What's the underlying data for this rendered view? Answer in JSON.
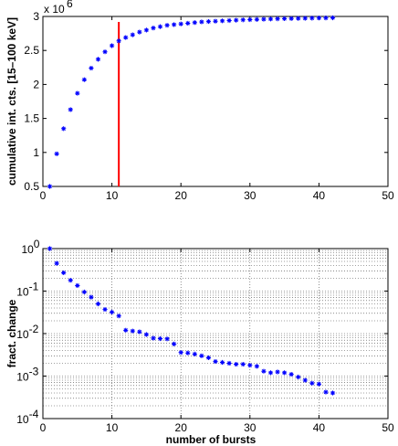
{
  "chart_data": [
    {
      "type": "scatter",
      "title": "",
      "xlabel": "",
      "ylabel": "cumulative int. cts. [15–100 keV]",
      "xlim": [
        0,
        50
      ],
      "ylim": [
        0.5,
        3.0
      ],
      "y_multiplier": "x 10",
      "y_multiplier_exponent": "6",
      "grid": false,
      "x_ticks": [
        "0",
        "10",
        "20",
        "30",
        "40",
        "50"
      ],
      "y_ticks": [
        "0.5",
        "1",
        "1.5",
        "2",
        "2.5",
        "3"
      ],
      "marker": "*",
      "marker_color": "#0000ff",
      "vline": {
        "x": 11,
        "color": "#ff0000"
      },
      "x": [
        1,
        2,
        3,
        4,
        5,
        6,
        7,
        8,
        9,
        10,
        11,
        12,
        13,
        14,
        15,
        16,
        17,
        18,
        19,
        20,
        21,
        22,
        23,
        24,
        25,
        26,
        27,
        28,
        29,
        30,
        31,
        32,
        33,
        34,
        35,
        36,
        37,
        38,
        39,
        40,
        41,
        42
      ],
      "y": [
        0.5,
        0.98,
        1.35,
        1.63,
        1.87,
        2.07,
        2.24,
        2.37,
        2.48,
        2.57,
        2.64,
        2.69,
        2.73,
        2.77,
        2.8,
        2.83,
        2.85,
        2.87,
        2.88,
        2.89,
        2.9,
        2.91,
        2.92,
        2.925,
        2.93,
        2.935,
        2.94,
        2.945,
        2.95,
        2.953,
        2.956,
        2.959,
        2.962,
        2.965,
        2.967,
        2.969,
        2.971,
        2.973,
        2.975,
        2.977,
        2.978,
        2.98
      ]
    },
    {
      "type": "scatter",
      "title": "",
      "xlabel": "number of bursts",
      "ylabel": "fract. change",
      "xlim": [
        0,
        50
      ],
      "ylim": [
        0.0001,
        1
      ],
      "yscale": "log",
      "grid": true,
      "x_ticks": [
        "0",
        "10",
        "20",
        "30",
        "40",
        "50"
      ],
      "y_ticks": [
        {
          "base": "10",
          "exp": "0"
        },
        {
          "base": "10",
          "exp": "-1"
        },
        {
          "base": "10",
          "exp": "-2"
        },
        {
          "base": "10",
          "exp": "-3"
        },
        {
          "base": "10",
          "exp": "-4"
        }
      ],
      "marker": "*",
      "marker_color": "#0000ff",
      "x": [
        1,
        2,
        3,
        4,
        5,
        6,
        7,
        8,
        9,
        10,
        11,
        12,
        13,
        14,
        15,
        16,
        17,
        18,
        19,
        20,
        21,
        22,
        23,
        24,
        25,
        26,
        27,
        28,
        29,
        30,
        31,
        32,
        33,
        34,
        35,
        36,
        37,
        38,
        39,
        40,
        41,
        42
      ],
      "y": [
        1.0,
        0.45,
        0.27,
        0.18,
        0.135,
        0.095,
        0.072,
        0.05,
        0.037,
        0.032,
        0.026,
        0.012,
        0.0115,
        0.011,
        0.0095,
        0.0078,
        0.0076,
        0.0075,
        0.0057,
        0.0036,
        0.0035,
        0.0033,
        0.003,
        0.0027,
        0.0022,
        0.0021,
        0.002,
        0.0019,
        0.0019,
        0.0018,
        0.0017,
        0.0013,
        0.0012,
        0.00125,
        0.0012,
        0.0011,
        0.00095,
        0.0008,
        0.00068,
        0.00065,
        0.00042,
        0.0004
      ]
    }
  ]
}
